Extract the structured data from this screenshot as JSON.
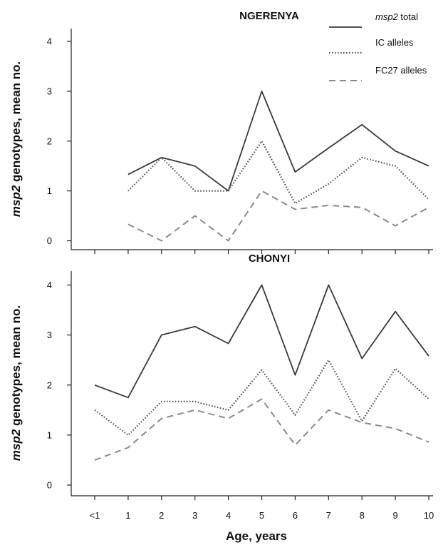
{
  "chart_data": {
    "type": "line",
    "categories": [
      "<1",
      "1",
      "2",
      "3",
      "4",
      "5",
      "6",
      "7",
      "8",
      "9",
      "10"
    ],
    "xlabel": "Age, years",
    "ylabel": {
      "italic": "msp2",
      "rest": " genotypes, mean no."
    },
    "legend": {
      "placement": "top-right",
      "entries": [
        {
          "italic": "msp2",
          "rest": " total",
          "style": "solid"
        },
        {
          "italic": "",
          "rest": "IC alleles",
          "style": "dotted"
        },
        {
          "italic": "",
          "rest": "FC27 alleles",
          "style": "dashed"
        }
      ]
    },
    "panels": [
      {
        "title": "NGERENYA",
        "ylim": [
          0,
          4.2
        ],
        "yticks": [
          0,
          1,
          2,
          3,
          4
        ],
        "series": [
          {
            "name": "msp2 total",
            "style": "solid",
            "color": "#3a3a3a",
            "values": [
              null,
              1.33,
              1.67,
              1.5,
              1.0,
              3.0,
              1.38,
              1.86,
              2.33,
              1.8,
              1.5
            ]
          },
          {
            "name": "IC alleles",
            "style": "dotted",
            "color": "#555555",
            "values": [
              null,
              1.0,
              1.67,
              1.0,
              1.0,
              2.0,
              0.75,
              1.14,
              1.67,
              1.5,
              0.83
            ]
          },
          {
            "name": "FC27 alleles",
            "style": "dashed",
            "color": "#8a8a8a",
            "values": [
              null,
              0.33,
              0.0,
              0.5,
              0.0,
              1.0,
              0.63,
              0.71,
              0.67,
              0.3,
              0.67
            ]
          }
        ]
      },
      {
        "title": "CHONYI",
        "ylim": [
          -0.15,
          4.25
        ],
        "yticks": [
          0,
          1,
          2,
          3,
          4
        ],
        "series": [
          {
            "name": "msp2 total",
            "style": "solid",
            "color": "#3a3a3a",
            "values": [
              2.0,
              1.75,
              3.0,
              3.17,
              2.83,
              4.0,
              2.2,
              4.0,
              2.53,
              3.47,
              2.58
            ]
          },
          {
            "name": "IC alleles",
            "style": "dotted",
            "color": "#555555",
            "values": [
              1.5,
              1.0,
              1.67,
              1.67,
              1.5,
              2.3,
              1.4,
              2.5,
              1.28,
              2.33,
              1.72
            ]
          },
          {
            "name": "FC27 alleles",
            "style": "dashed",
            "color": "#8a8a8a",
            "values": [
              0.5,
              0.75,
              1.33,
              1.5,
              1.33,
              1.72,
              0.8,
              1.5,
              1.25,
              1.13,
              0.86
            ]
          }
        ]
      }
    ]
  }
}
